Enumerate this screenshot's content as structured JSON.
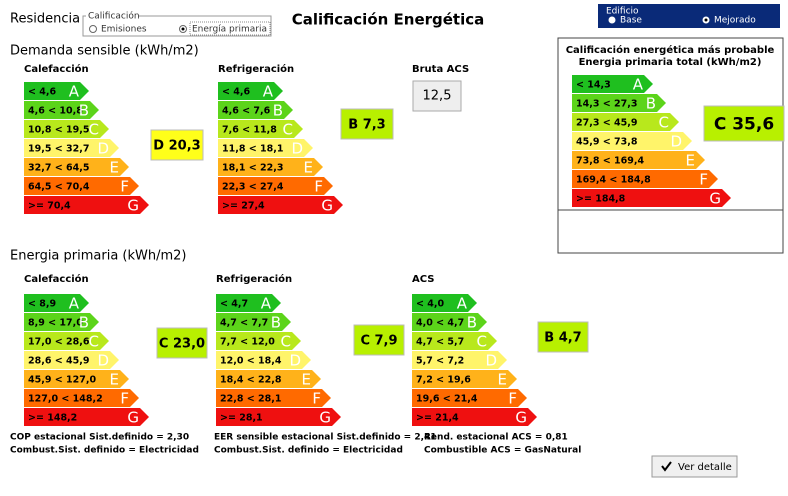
{
  "header": {
    "residence": "Residencia",
    "group": "Calificación",
    "options": [
      "Emisiones",
      "Energía primaria"
    ],
    "title": "Calificación Energética",
    "building_group": "Edificio",
    "building_options": [
      "Base",
      "Mejorado"
    ]
  },
  "letters": [
    "A",
    "B",
    "C",
    "D",
    "E",
    "F",
    "G"
  ],
  "demanda": {
    "title": "Demanda sensible (kWh/m2)",
    "scales": [
      {
        "title": "Calefacción",
        "ranges": [
          "< 4,6",
          "4,6 < 10,8",
          "10,8 < 19,5",
          "19,5 < 32,7",
          "32,7 < 64,5",
          "64,5 < 70,4",
          ">= 70,4"
        ],
        "rating": "D 20,3"
      },
      {
        "title": "Refrigeración",
        "ranges": [
          "< 4,6",
          "4,6 < 7,6",
          "7,6 < 11,8",
          "11,8 < 18,1",
          "18,1 < 22,3",
          "22,3 < 27,4",
          ">= 27,4"
        ],
        "rating": "B 7,3"
      }
    ],
    "acs": {
      "title": "Bruta ACS",
      "value": "12,5"
    }
  },
  "total": {
    "title": [
      "Calificación energética más probable",
      "Energia primaria total (kWh/m2)"
    ],
    "ranges": [
      "< 14,3",
      "14,3 < 27,3",
      "27,3 < 45,9",
      "45,9 < 73,8",
      "73,8 < 169,4",
      "169,4 < 184,8",
      ">= 184,8"
    ],
    "rating": "C 35,6"
  },
  "primaria": {
    "title": "Energia primaria (kWh/m2)",
    "scales": [
      {
        "title": "Calefacción",
        "ranges": [
          "< 8,9",
          "8,9 < 17,0",
          "17,0 < 28,6",
          "28,6 < 45,9",
          "45,9 < 127,0",
          "127,0 < 148,2",
          ">= 148,2"
        ],
        "rating": "C 23,0",
        "notes": [
          "COP estacional Sist.definido = 2,30",
          "Combust.Sist. definido = Electricidad"
        ]
      },
      {
        "title": "Refrigeración",
        "ranges": [
          "< 4,7",
          "4,7 < 7,7",
          "7,7 < 12,0",
          "12,0 < 18,4",
          "18,4 < 22,8",
          "22,8 < 28,1",
          ">= 28,1"
        ],
        "rating": "C 7,9",
        "notes": [
          "EER sensible estacional Sist.definido = 2,41",
          "Combust.Sist. definido = Electricidad"
        ]
      },
      {
        "title": "ACS",
        "ranges": [
          "< 4,0",
          "4,0 < 4,7",
          "4,7 < 5,7",
          "5,7 < 7,2",
          "7,2 < 19,6",
          "19,6 < 21,4",
          ">= 21,4"
        ],
        "rating": "B 4,7",
        "notes": [
          "Rend. estacional ACS = 0,81",
          "Combustible ACS = GasNatural"
        ]
      }
    ]
  },
  "button": "Ver detalle"
}
